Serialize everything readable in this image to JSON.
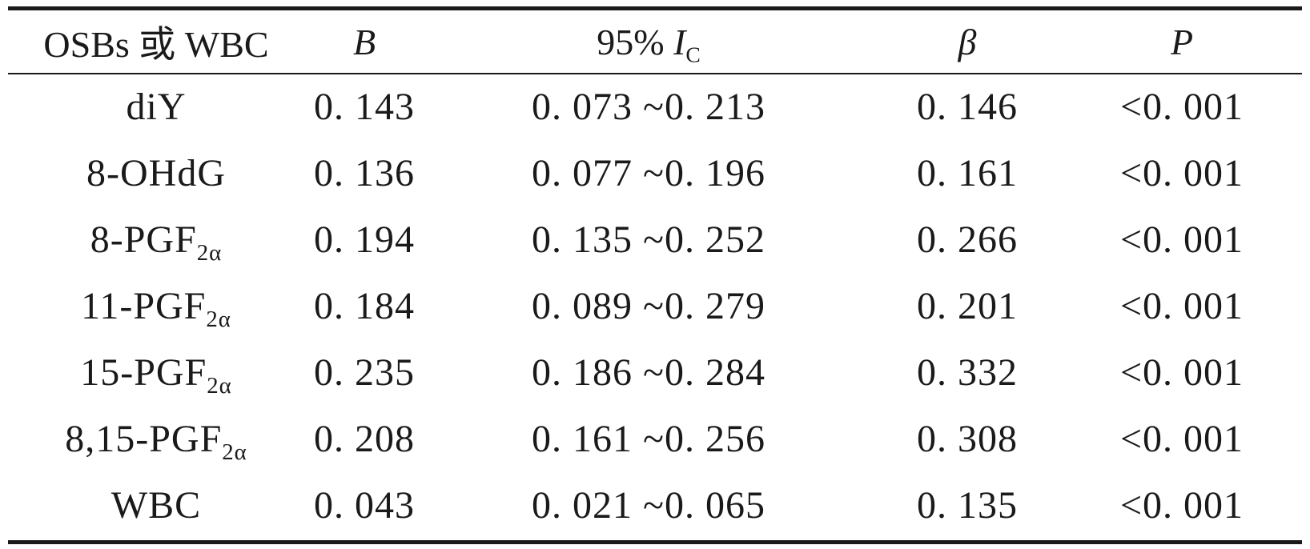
{
  "table": {
    "headers": {
      "name": "OSBs 或 WBC",
      "b": "B",
      "ci_main": "95%",
      "ci_i": "I",
      "ci_sub": "C",
      "beta": "β",
      "p": "P"
    },
    "rows": [
      {
        "name": "diY",
        "name_sub": "",
        "b": "0. 143",
        "ci": "0. 073 ~0. 213",
        "beta": "0. 146",
        "p": "<0. 001"
      },
      {
        "name": "8-OHdG",
        "name_sub": "",
        "b": "0. 136",
        "ci": "0. 077 ~0. 196",
        "beta": "0. 161",
        "p": "<0. 001"
      },
      {
        "name": "8-PGF",
        "name_sub": "2α",
        "b": "0. 194",
        "ci": "0. 135 ~0. 252",
        "beta": "0. 266",
        "p": "<0. 001"
      },
      {
        "name": "11-PGF",
        "name_sub": "2α",
        "b": "0. 184",
        "ci": "0. 089 ~0. 279",
        "beta": "0. 201",
        "p": "<0. 001"
      },
      {
        "name": "15-PGF",
        "name_sub": "2α",
        "b": "0. 235",
        "ci": "0. 186 ~0. 284",
        "beta": "0. 332",
        "p": "<0. 001"
      },
      {
        "name": "8,15-PGF",
        "name_sub": "2α",
        "b": "0. 208",
        "ci": "0. 161 ~0. 256",
        "beta": "0. 308",
        "p": "<0. 001"
      },
      {
        "name": "WBC",
        "name_sub": "",
        "b": "0. 043",
        "ci": "0. 021 ~0. 065",
        "beta": "0. 135",
        "p": "<0. 001"
      }
    ]
  }
}
